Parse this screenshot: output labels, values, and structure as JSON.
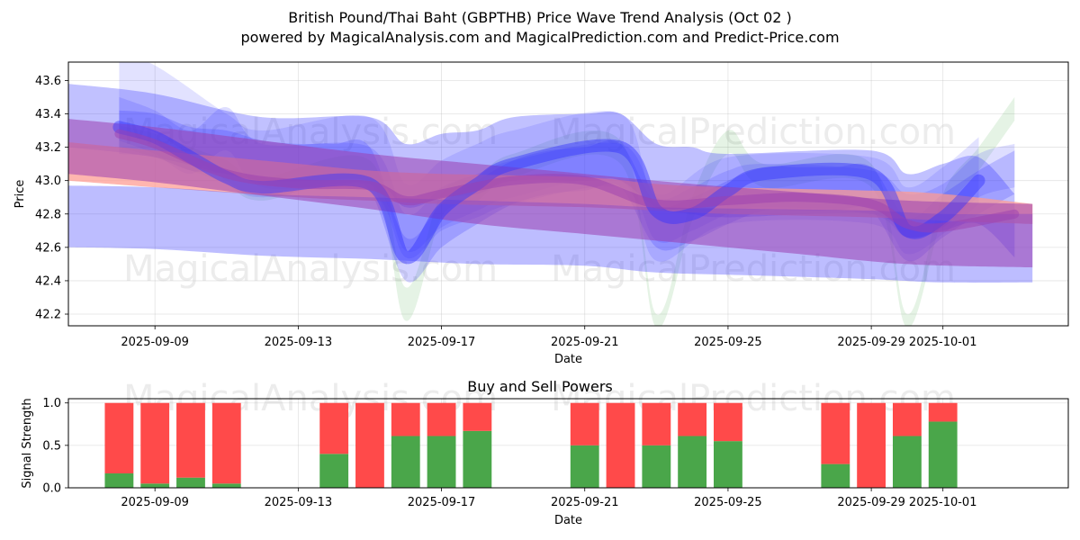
{
  "titles": {
    "line1": "British Pound/Thai Baht (GBPTHB) Price Wave Trend Analysis (Oct 02 )",
    "line2": "powered by MagicalAnalysis.com and MagicalPrediction.com and Predict-Price.com"
  },
  "watermarks": [
    "MagicalAnalysis.com",
    "MagicalPrediction.com"
  ],
  "colors": {
    "green": "#2ca02c",
    "red": "#ff4a4a",
    "blue": "#3333ff",
    "salmon": "#ff9a90",
    "purple": "#9b3fb0",
    "buy": "#4aa64a",
    "sell": "#ff4a4a"
  },
  "chart_data": [
    {
      "type": "line",
      "title": "",
      "xlabel": "Date",
      "ylabel": "Price",
      "grid": true,
      "x_range": [
        "2025-09-06T14:00",
        "2025-10-04T12:00"
      ],
      "ylim": [
        42.13,
        43.71
      ],
      "x_ticks": [
        "2025-09-09",
        "2025-09-13",
        "2025-09-17",
        "2025-09-21",
        "2025-09-25",
        "2025-09-29",
        "2025-10-01"
      ],
      "y_ticks": [
        "42.2",
        "42.4",
        "42.6",
        "42.8",
        "43.0",
        "43.2",
        "43.4",
        "43.6"
      ],
      "bands": [
        {
          "name": "green wave",
          "color": "green",
          "opacity": 0.12,
          "x": [
            "2025-09-08",
            "2025-09-09",
            "2025-09-10",
            "2025-09-11",
            "2025-09-12",
            "2025-09-15",
            "2025-09-16",
            "2025-09-17",
            "2025-09-18",
            "2025-09-19",
            "2025-09-22",
            "2025-09-23",
            "2025-09-24",
            "2025-09-25",
            "2025-09-26",
            "2025-09-29",
            "2025-09-30",
            "2025-10-01",
            "2025-10-02",
            "2025-10-03"
          ],
          "upper": [
            43.33,
            43.28,
            43.2,
            43.12,
            43.02,
            43.12,
            42.36,
            42.92,
            43.02,
            43.16,
            43.24,
            42.2,
            42.9,
            43.3,
            43.1,
            43.1,
            42.2,
            42.92,
            43.2,
            43.5
          ],
          "lower": [
            43.2,
            43.14,
            43.06,
            42.98,
            42.88,
            42.98,
            42.16,
            42.78,
            42.88,
            43.02,
            43.1,
            42.12,
            42.76,
            43.16,
            42.96,
            42.96,
            42.12,
            42.78,
            43.06,
            43.36
          ]
        },
        {
          "name": "blue wave 1",
          "color": "blue",
          "opacity": 0.14,
          "x": [
            "2025-09-08",
            "2025-09-09",
            "2025-09-11",
            "2025-09-12",
            "2025-09-15",
            "2025-09-16",
            "2025-09-17",
            "2025-09-18",
            "2025-09-19",
            "2025-09-22",
            "2025-09-23",
            "2025-09-25",
            "2025-09-29",
            "2025-09-30",
            "2025-10-01",
            "2025-10-02"
          ],
          "upper": [
            43.74,
            43.69,
            43.4,
            43.3,
            43.38,
            42.98,
            43.12,
            43.22,
            43.3,
            43.4,
            42.92,
            43.14,
            43.14,
            42.96,
            43.08,
            43.26
          ],
          "lower": [
            43.34,
            43.29,
            43.0,
            42.9,
            42.98,
            42.58,
            42.72,
            42.82,
            42.9,
            43.0,
            42.52,
            42.74,
            42.74,
            42.56,
            42.68,
            42.86
          ]
        },
        {
          "name": "blue wave 2",
          "color": "blue",
          "opacity": 0.16,
          "x": [
            "2025-09-08",
            "2025-09-09",
            "2025-09-10",
            "2025-09-11",
            "2025-09-12",
            "2025-09-15",
            "2025-09-16",
            "2025-09-17",
            "2025-09-18",
            "2025-09-19",
            "2025-09-22",
            "2025-09-23",
            "2025-09-24",
            "2025-09-25",
            "2025-09-26",
            "2025-09-29",
            "2025-09-30",
            "2025-10-01",
            "2025-10-02",
            "2025-10-03"
          ],
          "upper": [
            43.5,
            43.42,
            43.3,
            43.44,
            43.22,
            43.2,
            42.8,
            42.96,
            43.04,
            43.12,
            43.22,
            42.9,
            42.96,
            43.06,
            43.1,
            43.06,
            42.92,
            42.98,
            43.16,
            43.22
          ],
          "lower": [
            43.24,
            43.16,
            43.04,
            43.18,
            42.96,
            42.94,
            42.54,
            42.7,
            42.78,
            42.86,
            42.96,
            42.64,
            42.7,
            42.8,
            42.84,
            42.8,
            42.66,
            42.72,
            42.9,
            42.96
          ]
        },
        {
          "name": "blue wave 3",
          "color": "blue",
          "opacity": 0.22,
          "x": [
            "2025-09-08",
            "2025-09-09",
            "2025-09-10",
            "2025-09-11",
            "2025-09-12",
            "2025-09-13",
            "2025-09-14",
            "2025-09-15",
            "2025-09-16",
            "2025-09-17",
            "2025-09-18",
            "2025-09-19",
            "2025-09-20",
            "2025-09-21",
            "2025-09-22",
            "2025-09-23",
            "2025-09-24",
            "2025-09-25",
            "2025-09-26",
            "2025-09-27",
            "2025-09-28",
            "2025-09-29",
            "2025-09-30",
            "2025-10-01",
            "2025-10-02",
            "2025-10-03"
          ],
          "upper": [
            43.42,
            43.4,
            43.32,
            43.3,
            43.24,
            43.22,
            43.22,
            43.2,
            42.66,
            42.86,
            43.0,
            43.12,
            43.18,
            43.2,
            43.22,
            42.86,
            42.9,
            43.0,
            43.08,
            43.08,
            43.08,
            43.08,
            42.78,
            42.92,
            43.06,
            43.18
          ],
          "lower": [
            43.16,
            43.14,
            43.06,
            43.04,
            42.98,
            42.96,
            42.96,
            42.94,
            42.4,
            42.6,
            42.74,
            42.86,
            42.92,
            42.94,
            42.96,
            42.6,
            42.64,
            42.74,
            42.82,
            42.82,
            42.82,
            42.82,
            42.52,
            42.66,
            42.8,
            42.92
          ]
        },
        {
          "name": "outer blue channel",
          "color": "blue",
          "opacity": 0.3,
          "x": [
            "2025-09-06T14:00",
            "2025-09-09",
            "2025-09-12",
            "2025-09-15",
            "2025-09-16",
            "2025-09-17",
            "2025-09-18",
            "2025-09-19",
            "2025-09-21",
            "2025-09-22",
            "2025-09-23",
            "2025-09-24",
            "2025-09-25",
            "2025-09-29",
            "2025-09-30",
            "2025-10-01",
            "2025-10-02",
            "2025-10-03"
          ],
          "upper": [
            43.58,
            43.52,
            43.38,
            43.38,
            43.22,
            43.28,
            43.3,
            43.38,
            43.4,
            43.4,
            43.22,
            43.2,
            43.16,
            43.18,
            43.04,
            43.1,
            43.14,
            42.92
          ],
          "lower": [
            43.2,
            43.14,
            43.0,
            43.0,
            42.84,
            42.9,
            42.92,
            43.0,
            43.0,
            43.0,
            42.84,
            42.8,
            42.78,
            42.8,
            42.66,
            42.7,
            42.74,
            42.54
          ]
        },
        {
          "name": "salmon trend band",
          "color": "salmon",
          "opacity": 0.72,
          "x": [
            "2025-09-06T14:00",
            "2025-09-09",
            "2025-09-13",
            "2025-09-15",
            "2025-09-17",
            "2025-09-21",
            "2025-09-23",
            "2025-09-25",
            "2025-09-29",
            "2025-10-01",
            "2025-10-03T12:00"
          ],
          "upper": [
            43.23,
            43.18,
            43.1,
            43.06,
            43.04,
            43.02,
            42.98,
            42.96,
            42.94,
            42.92,
            42.86
          ],
          "lower": [
            43.0,
            42.96,
            42.9,
            42.88,
            42.86,
            42.84,
            42.82,
            42.8,
            42.78,
            42.76,
            42.74
          ]
        },
        {
          "name": "lower blue channel",
          "color": "blue",
          "opacity": 0.32,
          "x": [
            "2025-09-06T14:00",
            "2025-09-09",
            "2025-09-12",
            "2025-09-15",
            "2025-09-18",
            "2025-09-21",
            "2025-09-23",
            "2025-09-26",
            "2025-09-29",
            "2025-10-01",
            "2025-10-03T12:00"
          ],
          "upper": [
            42.97,
            42.96,
            42.92,
            42.9,
            42.88,
            42.86,
            42.84,
            42.83,
            42.82,
            42.8,
            42.8
          ],
          "lower": [
            42.6,
            42.59,
            42.55,
            42.53,
            42.5,
            42.49,
            42.45,
            42.43,
            42.41,
            42.39,
            42.39
          ]
        },
        {
          "name": "purple trend band",
          "color": "purple",
          "opacity": 0.55,
          "x": [
            "2025-09-06T14:00",
            "2025-09-09",
            "2025-09-12",
            "2025-09-15",
            "2025-09-18",
            "2025-09-21",
            "2025-09-24",
            "2025-09-27",
            "2025-09-30",
            "2025-10-03T12:00"
          ],
          "upper": [
            43.37,
            43.32,
            43.24,
            43.16,
            43.1,
            43.04,
            42.98,
            42.93,
            42.88,
            42.86
          ],
          "lower": [
            43.04,
            42.99,
            42.91,
            42.83,
            42.74,
            42.68,
            42.62,
            42.56,
            42.5,
            42.48
          ]
        }
      ],
      "lines": [
        {
          "name": "blue wave line",
          "color": "blue",
          "opacity": 0.45,
          "width": 14,
          "x": [
            "2025-09-08",
            "2025-09-09",
            "2025-09-10",
            "2025-09-11",
            "2025-09-12",
            "2025-09-15",
            "2025-09-16",
            "2025-09-17",
            "2025-09-18",
            "2025-09-19",
            "2025-09-22",
            "2025-09-23",
            "2025-09-24",
            "2025-09-25",
            "2025-09-26",
            "2025-09-29",
            "2025-09-30",
            "2025-10-01",
            "2025-10-02"
          ],
          "values": [
            43.32,
            43.26,
            43.14,
            43.02,
            42.96,
            42.98,
            42.54,
            42.82,
            42.98,
            43.1,
            43.2,
            42.82,
            42.8,
            42.94,
            43.04,
            43.04,
            42.7,
            42.78,
            43.0
          ]
        },
        {
          "name": "purple trend line",
          "color": "purple",
          "opacity": 0.5,
          "width": 10,
          "x": [
            "2025-09-08",
            "2025-09-09",
            "2025-09-11",
            "2025-09-13",
            "2025-09-15",
            "2025-09-16",
            "2025-09-17",
            "2025-09-19",
            "2025-09-21",
            "2025-09-23",
            "2025-09-25",
            "2025-09-27",
            "2025-09-29",
            "2025-09-30",
            "2025-10-01",
            "2025-10-03"
          ],
          "values": [
            43.28,
            43.22,
            43.04,
            42.98,
            42.97,
            42.88,
            42.92,
            43.0,
            43.0,
            42.86,
            42.88,
            42.9,
            42.86,
            42.74,
            42.72,
            42.8
          ]
        }
      ]
    },
    {
      "type": "bar",
      "title": "Buy and Sell Powers",
      "xlabel": "Date",
      "ylabel": "Signal Strength",
      "grid": true,
      "x_range": [
        "2025-09-06T14:00",
        "2025-10-04T12:00"
      ],
      "ylim": [
        0,
        1.05
      ],
      "x_ticks": [
        "2025-09-09",
        "2025-09-13",
        "2025-09-17",
        "2025-09-21",
        "2025-09-25",
        "2025-09-29",
        "2025-10-01"
      ],
      "y_ticks": [
        "0.0",
        "0.5",
        "1.0"
      ],
      "categories": [
        "2025-09-08",
        "2025-09-09",
        "2025-09-10",
        "2025-09-11",
        "2025-09-14",
        "2025-09-15",
        "2025-09-16",
        "2025-09-17",
        "2025-09-18",
        "2025-09-21",
        "2025-09-22",
        "2025-09-23",
        "2025-09-24",
        "2025-09-25",
        "2025-09-28",
        "2025-09-29",
        "2025-09-30",
        "2025-10-01"
      ],
      "series": [
        {
          "name": "Buy",
          "color": "buy",
          "values": [
            0.17,
            0.05,
            0.12,
            0.05,
            0.4,
            0.0,
            0.61,
            0.61,
            0.67,
            0.5,
            0.0,
            0.5,
            0.61,
            0.55,
            0.28,
            0.0,
            0.61,
            0.78
          ]
        },
        {
          "name": "Sell",
          "color": "sell",
          "values": [
            0.83,
            0.95,
            0.88,
            0.95,
            0.6,
            1.0,
            0.39,
            0.39,
            0.33,
            0.5,
            1.0,
            0.5,
            0.39,
            0.45,
            0.72,
            1.0,
            0.39,
            0.22
          ]
        }
      ]
    }
  ]
}
